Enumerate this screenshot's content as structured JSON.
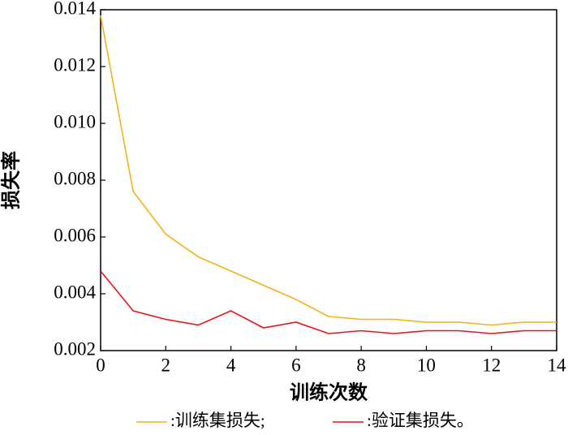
{
  "chart_data": {
    "type": "line",
    "x_label": "训练次数",
    "y_label": "损失率",
    "x": [
      0,
      1,
      2,
      3,
      4,
      5,
      6,
      7,
      8,
      9,
      10,
      11,
      12,
      13,
      14
    ],
    "series": [
      {
        "name": ":训练集损失;",
        "color": "#f2b21c",
        "values": [
          0.0138,
          0.0076,
          0.0061,
          0.0053,
          0.0048,
          0.0043,
          0.0038,
          0.0032,
          0.0031,
          0.0031,
          0.003,
          0.003,
          0.0029,
          0.003,
          0.003
        ]
      },
      {
        "name": ":验证集损失。",
        "color": "#e8141b",
        "values": [
          0.0048,
          0.0034,
          0.0031,
          0.0029,
          0.0034,
          0.0028,
          0.003,
          0.0026,
          0.0027,
          0.0026,
          0.0027,
          0.0027,
          0.0026,
          0.0027,
          0.0027
        ]
      }
    ],
    "xlim": [
      0,
      14
    ],
    "xticks": [
      0,
      2,
      4,
      6,
      8,
      10,
      12,
      14
    ],
    "ylim": [
      0.002,
      0.014
    ],
    "yticks": [
      0.002,
      0.004,
      0.006,
      0.008,
      {
        "value": 0.01,
        "label": "0.010"
      },
      0.012,
      0.014
    ],
    "grid": false
  }
}
